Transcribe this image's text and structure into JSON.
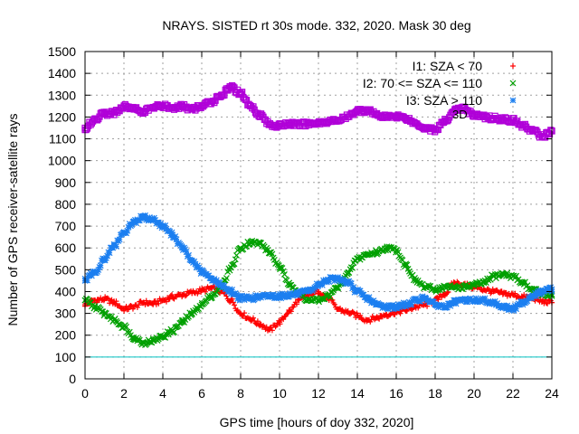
{
  "chart_data": {
    "type": "scatter",
    "title": "NRAYS. SISTED rt 30s mode. 332, 2020. Mask 30 deg",
    "xlabel": "GPS time [hours of doy 332, 2020]",
    "ylabel": "Number of GPS receiver-satellite rays",
    "xlim": [
      0,
      24
    ],
    "ylim": [
      0,
      1500
    ],
    "grid": true,
    "x_ticks": [
      "0",
      "2",
      "4",
      "6",
      "8",
      "10",
      "12",
      "14",
      "16",
      "18",
      "20",
      "22",
      "24"
    ],
    "y_ticks": [
      "0",
      "100",
      "200",
      "300",
      "400",
      "500",
      "600",
      "700",
      "800",
      "900",
      "1000",
      "1100",
      "1200",
      "1300",
      "1400",
      "1500"
    ],
    "reference_line": {
      "y": 100,
      "color": "#00c0c0"
    },
    "legend_position": "top-right",
    "partial_label": "3D",
    "series": [
      {
        "name": "I1: SZA < 70",
        "color": "#ff0000",
        "marker": "plus",
        "points": [
          [
            0,
            340
          ],
          [
            0.5,
            360
          ],
          [
            1,
            365
          ],
          [
            1.5,
            350
          ],
          [
            2,
            320
          ],
          [
            2.5,
            330
          ],
          [
            3,
            350
          ],
          [
            3.5,
            345
          ],
          [
            4,
            360
          ],
          [
            4.5,
            375
          ],
          [
            5,
            385
          ],
          [
            5.5,
            395
          ],
          [
            6,
            405
          ],
          [
            6.5,
            415
          ],
          [
            7,
            400
          ],
          [
            7.5,
            360
          ],
          [
            8,
            300
          ],
          [
            8.5,
            275
          ],
          [
            9,
            250
          ],
          [
            9.5,
            225
          ],
          [
            10,
            260
          ],
          [
            10.5,
            310
          ],
          [
            11,
            360
          ],
          [
            11.5,
            385
          ],
          [
            12,
            400
          ],
          [
            12.5,
            370
          ],
          [
            13,
            320
          ],
          [
            13.5,
            305
          ],
          [
            14,
            290
          ],
          [
            14.5,
            270
          ],
          [
            15,
            280
          ],
          [
            15.5,
            295
          ],
          [
            16,
            305
          ],
          [
            16.5,
            315
          ],
          [
            17,
            330
          ],
          [
            17.5,
            340
          ],
          [
            18,
            360
          ],
          [
            18.5,
            390
          ],
          [
            19,
            440
          ],
          [
            19.5,
            430
          ],
          [
            20,
            420
          ],
          [
            20.5,
            410
          ],
          [
            21,
            400
          ],
          [
            21.5,
            390
          ],
          [
            22,
            385
          ],
          [
            22.5,
            375
          ],
          [
            23,
            370
          ],
          [
            23.5,
            355
          ],
          [
            24,
            350
          ]
        ]
      },
      {
        "name": "I2: 70 <= SZA <= 110",
        "color": "#00a000",
        "marker": "cross",
        "points": [
          [
            0,
            360
          ],
          [
            0.5,
            330
          ],
          [
            1,
            300
          ],
          [
            1.5,
            270
          ],
          [
            2,
            240
          ],
          [
            2.5,
            190
          ],
          [
            3,
            165
          ],
          [
            3.5,
            175
          ],
          [
            4,
            195
          ],
          [
            4.5,
            220
          ],
          [
            5,
            260
          ],
          [
            5.5,
            300
          ],
          [
            6,
            340
          ],
          [
            6.5,
            380
          ],
          [
            7,
            420
          ],
          [
            7.5,
            510
          ],
          [
            8,
            600
          ],
          [
            8.5,
            625
          ],
          [
            9,
            620
          ],
          [
            9.5,
            580
          ],
          [
            10,
            510
          ],
          [
            10.5,
            440
          ],
          [
            11,
            390
          ],
          [
            11.5,
            360
          ],
          [
            12,
            360
          ],
          [
            12.5,
            380
          ],
          [
            13,
            420
          ],
          [
            13.5,
            480
          ],
          [
            14,
            550
          ],
          [
            14.5,
            570
          ],
          [
            15,
            580
          ],
          [
            15.5,
            600
          ],
          [
            16,
            590
          ],
          [
            16.5,
            520
          ],
          [
            17,
            450
          ],
          [
            17.5,
            420
          ],
          [
            18,
            410
          ],
          [
            18.5,
            420
          ],
          [
            19,
            420
          ],
          [
            19.5,
            420
          ],
          [
            20,
            430
          ],
          [
            20.5,
            440
          ],
          [
            21,
            470
          ],
          [
            21.5,
            480
          ],
          [
            22,
            470
          ],
          [
            22.5,
            440
          ],
          [
            23,
            410
          ],
          [
            23.5,
            390
          ],
          [
            24,
            380
          ]
        ]
      },
      {
        "name": "I3: SZA > 110",
        "color": "#1c7ff0",
        "marker": "star",
        "points": [
          [
            0,
            450
          ],
          [
            0.5,
            490
          ],
          [
            1,
            550
          ],
          [
            1.5,
            610
          ],
          [
            2,
            670
          ],
          [
            2.5,
            720
          ],
          [
            3,
            740
          ],
          [
            3.5,
            730
          ],
          [
            4,
            700
          ],
          [
            4.5,
            660
          ],
          [
            5,
            600
          ],
          [
            5.5,
            540
          ],
          [
            6,
            490
          ],
          [
            6.5,
            460
          ],
          [
            7,
            430
          ],
          [
            7.5,
            400
          ],
          [
            8,
            370
          ],
          [
            8.5,
            370
          ],
          [
            9,
            375
          ],
          [
            9.5,
            380
          ],
          [
            10,
            380
          ],
          [
            10.5,
            385
          ],
          [
            11,
            390
          ],
          [
            11.5,
            400
          ],
          [
            12,
            430
          ],
          [
            12.5,
            455
          ],
          [
            13,
            460
          ],
          [
            13.5,
            440
          ],
          [
            14,
            400
          ],
          [
            14.5,
            370
          ],
          [
            15,
            340
          ],
          [
            15.5,
            330
          ],
          [
            16,
            330
          ],
          [
            16.5,
            340
          ],
          [
            17,
            360
          ],
          [
            17.5,
            370
          ],
          [
            18,
            340
          ],
          [
            18.5,
            330
          ],
          [
            19,
            350
          ],
          [
            19.5,
            360
          ],
          [
            20,
            360
          ],
          [
            20.5,
            360
          ],
          [
            21,
            350
          ],
          [
            21.5,
            330
          ],
          [
            22,
            320
          ],
          [
            22.5,
            350
          ],
          [
            23,
            380
          ],
          [
            23.5,
            400
          ],
          [
            24,
            410
          ]
        ]
      },
      {
        "name": "I3D",
        "color": "#b000d8",
        "marker": "square",
        "points": [
          [
            0,
            1150
          ],
          [
            0.5,
            1190
          ],
          [
            1,
            1215
          ],
          [
            1.5,
            1220
          ],
          [
            2,
            1250
          ],
          [
            2.5,
            1240
          ],
          [
            3,
            1225
          ],
          [
            3.5,
            1245
          ],
          [
            4,
            1250
          ],
          [
            4.5,
            1240
          ],
          [
            5,
            1250
          ],
          [
            5.5,
            1235
          ],
          [
            6,
            1250
          ],
          [
            6.5,
            1270
          ],
          [
            7,
            1300
          ],
          [
            7.5,
            1335
          ],
          [
            8,
            1310
          ],
          [
            8.5,
            1250
          ],
          [
            9,
            1210
          ],
          [
            9.5,
            1165
          ],
          [
            10,
            1160
          ],
          [
            10.5,
            1170
          ],
          [
            11,
            1165
          ],
          [
            11.5,
            1170
          ],
          [
            12,
            1175
          ],
          [
            12.5,
            1180
          ],
          [
            13,
            1185
          ],
          [
            13.5,
            1200
          ],
          [
            14,
            1230
          ],
          [
            14.5,
            1230
          ],
          [
            15,
            1210
          ],
          [
            15.5,
            1200
          ],
          [
            16,
            1205
          ],
          [
            16.5,
            1195
          ],
          [
            17,
            1170
          ],
          [
            17.5,
            1150
          ],
          [
            18,
            1140
          ],
          [
            18.5,
            1180
          ],
          [
            19,
            1230
          ],
          [
            19.5,
            1240
          ],
          [
            20,
            1210
          ],
          [
            20.5,
            1200
          ],
          [
            21,
            1195
          ],
          [
            21.5,
            1190
          ],
          [
            22,
            1185
          ],
          [
            22.5,
            1160
          ],
          [
            23,
            1140
          ],
          [
            23.5,
            1110
          ],
          [
            24,
            1135
          ]
        ]
      }
    ]
  }
}
